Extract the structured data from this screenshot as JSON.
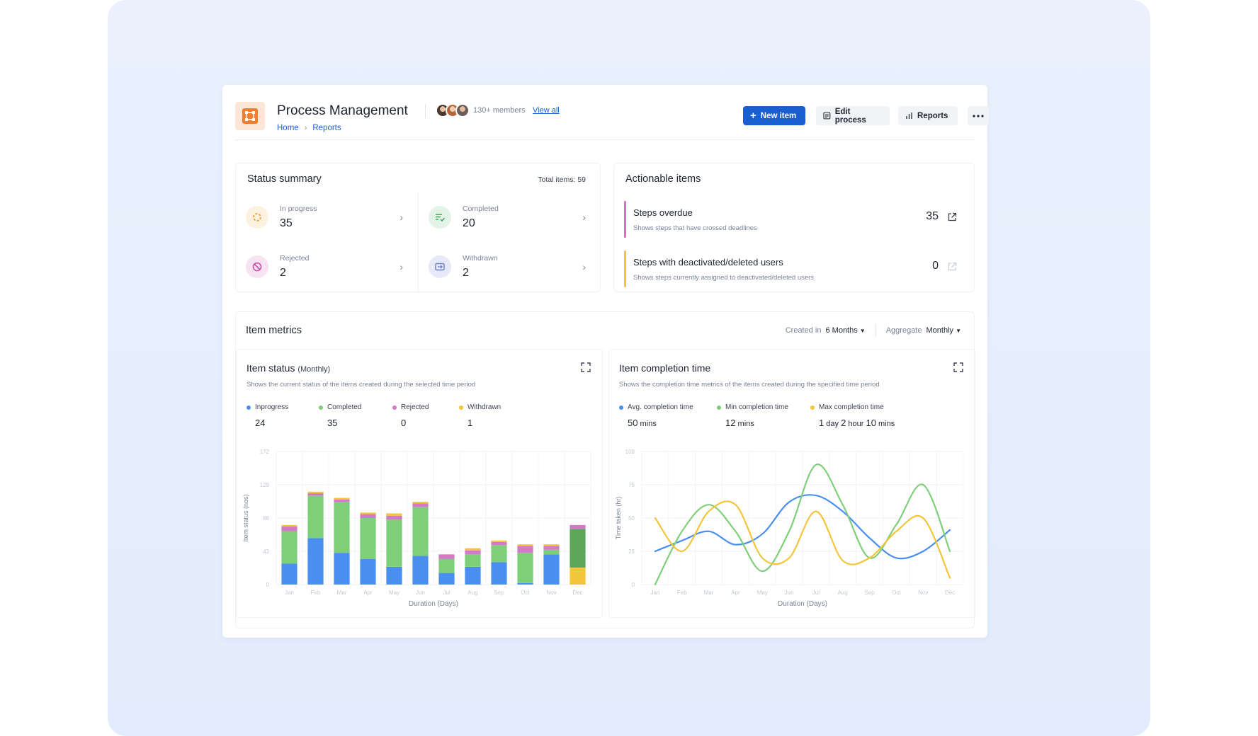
{
  "app": {
    "title": "Process Management",
    "members": "130+ members",
    "view_all": "View all",
    "breadcrumb": [
      "Home",
      "Reports"
    ]
  },
  "toolbar": {
    "new_item": "New item",
    "edit_process": "Edit process",
    "reports": "Reports",
    "more_icon": "ellipsis-icon"
  },
  "status_summary": {
    "title": "Status summary",
    "total": "Total items: 59",
    "items": [
      {
        "label": "In progress",
        "value": "35",
        "icon": "spinner-icon",
        "color": "#f3a22c"
      },
      {
        "label": "Completed",
        "value": "20",
        "icon": "checklist-icon",
        "color": "#3daa5c"
      },
      {
        "label": "Rejected",
        "value": "2",
        "icon": "block-icon",
        "color": "#c94fa6"
      },
      {
        "label": "Withdrawn",
        "value": "2",
        "icon": "withdraw-icon",
        "color": "#6d7cc2"
      }
    ]
  },
  "actionable": {
    "title": "Actionable items",
    "items": [
      {
        "title": "Steps overdue",
        "subtitle": "Shows steps that have crossed deadlines",
        "value": "35",
        "color": "#d86fc0"
      },
      {
        "title": "Steps with deactivated/deleted users",
        "subtitle": "Shows steps currently assigned to deactivated/deleted users",
        "value": "0",
        "color": "#f3c53a"
      }
    ]
  },
  "metrics": {
    "title": "Item metrics",
    "created_in_label": "Created in",
    "created_in_value": "6 Months",
    "aggregate_label": "Aggregate",
    "aggregate_value": "Monthly"
  },
  "item_status_chart": {
    "title": "Item status",
    "title_sub": "(Monthly)",
    "description": "Shows the current status of the items created during the selected time period",
    "legend": [
      {
        "name": "Inprogress",
        "value": "24",
        "color": "#4a8ff0"
      },
      {
        "name": "Completed",
        "value": "35",
        "color": "#7fcf7a"
      },
      {
        "name": "Rejected",
        "value": "0",
        "color": "#d27ac4"
      },
      {
        "name": "Withdrawn",
        "value": "1",
        "color": "#f3c53a"
      }
    ]
  },
  "completion_chart": {
    "title": "Item completion time",
    "description": "Shows the completion time metrics of the items created during the specified time period",
    "legend": [
      {
        "name": "Avg. completion time",
        "parts": [
          {
            "n": "50",
            "u": " mins"
          }
        ],
        "color": "#4a8ff0"
      },
      {
        "name": "Min completion time",
        "parts": [
          {
            "n": "12",
            "u": " mins"
          }
        ],
        "color": "#7fcf7a"
      },
      {
        "name": "Max completion time",
        "parts": [
          {
            "n": "1",
            "u": " day "
          },
          {
            "n": "2",
            "u": " hour "
          },
          {
            "n": "10",
            "u": " mins"
          }
        ],
        "color": "#f3c53a"
      }
    ]
  },
  "chart_data": [
    {
      "type": "bar",
      "stacked": true,
      "categories": [
        "Jan",
        "Feb",
        "Mar",
        "Apr",
        "May",
        "Jun",
        "Jul",
        "Aug",
        "Sep",
        "Oct",
        "Nov",
        "Dec"
      ],
      "xlabel": "Duration (Days)",
      "ylabel": "Item status (nos)",
      "yticks": [
        0,
        43,
        86,
        129,
        172
      ],
      "ylim": [
        0,
        172
      ],
      "grid": true,
      "series": [
        {
          "name": "Inprogress",
          "color": "#4a8ff0",
          "values": [
            27,
            60,
            41,
            33,
            23,
            37,
            15,
            23,
            29,
            2,
            39,
            0
          ]
        },
        {
          "name": "Completed",
          "color": "#7fcf7a",
          "values": [
            42,
            55,
            66,
            53,
            61,
            63,
            18,
            16,
            22,
            39,
            6,
            0
          ]
        },
        {
          "name": "Rejected",
          "color": "#d27ac4",
          "values": [
            6,
            3,
            3,
            5,
            5,
            5,
            6,
            5,
            4,
            9,
            5,
            5
          ]
        },
        {
          "name": "Withdrawn",
          "color": "#f3c53a",
          "values": [
            2,
            2,
            2,
            2,
            3,
            2,
            0,
            3,
            2,
            2,
            2,
            22
          ]
        },
        {
          "name": "Completed (dark)",
          "color": "#5ea65a",
          "values": [
            0,
            0,
            0,
            0,
            0,
            0,
            0,
            0,
            0,
            0,
            0,
            50
          ]
        }
      ]
    },
    {
      "type": "line",
      "categories": [
        "Jan",
        "Feb",
        "Mar",
        "Apr",
        "May",
        "Jun",
        "Jul",
        "Aug",
        "Sep",
        "Oct",
        "Nov",
        "Dec"
      ],
      "xlabel": "Duration (Days)",
      "ylabel": "Time taken (hr)",
      "yticks": [
        0,
        25,
        50,
        75,
        100
      ],
      "ylim": [
        0,
        100
      ],
      "grid": true,
      "series": [
        {
          "name": "Avg. completion time",
          "color": "#4a8ff0",
          "values": [
            25,
            33,
            40,
            30,
            38,
            62,
            67,
            55,
            35,
            20,
            25,
            41
          ]
        },
        {
          "name": "Min completion time",
          "color": "#7fcf7a",
          "values": [
            0,
            40,
            60,
            40,
            10,
            40,
            90,
            60,
            20,
            45,
            75,
            25
          ]
        },
        {
          "name": "Max completion time",
          "color": "#f3c53a",
          "values": [
            50,
            25,
            55,
            60,
            20,
            20,
            55,
            18,
            20,
            40,
            50,
            5
          ]
        }
      ]
    }
  ]
}
